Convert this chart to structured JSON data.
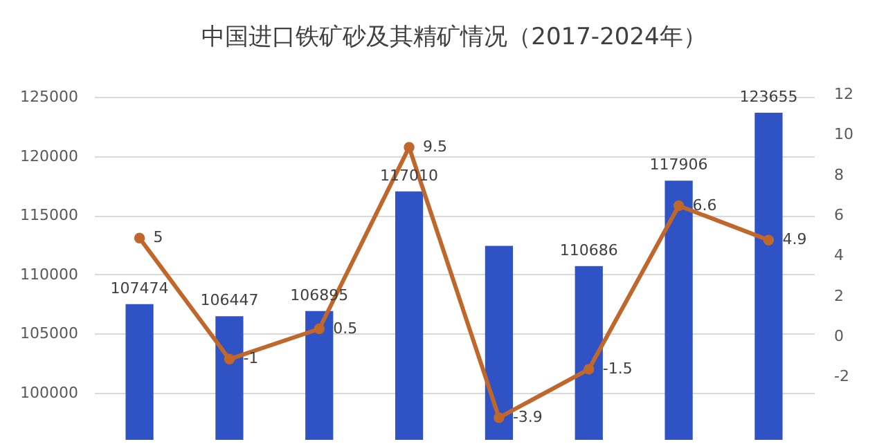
{
  "chart_data": {
    "type": "bar",
    "title": "中国进口铁矿砂及其精矿情况（2017-2024年）",
    "categories": [
      null,
      null,
      null,
      null,
      null,
      null,
      null,
      null
    ],
    "series": [
      {
        "color": "#2f52c4",
        "values": [
          107474,
          106447,
          106895,
          117010,
          112400,
          110686,
          117906,
          123655
        ],
        "value_labels": [
          "107474",
          "106447",
          "106895",
          "117010",
          null,
          "110686",
          "117906",
          "123655"
        ]
      },
      {
        "type": "line",
        "axis": "y2",
        "color": "#c0672b",
        "values": [
          5,
          -1,
          0.5,
          9.5,
          -3.9,
          -1.5,
          6.6,
          4.9
        ],
        "value_labels": [
          "5",
          "-1",
          "0.5",
          "9.5",
          "-3.9",
          "-1.5",
          "6.6",
          "4.9"
        ]
      }
    ],
    "ylim": [
      96000,
      125000
    ],
    "yticks": [
      100000,
      105000,
      110000,
      115000,
      120000,
      125000
    ],
    "y2lim": [
      -5,
      12
    ],
    "y2ticks": [
      -2,
      0,
      2,
      4,
      6,
      8,
      10,
      12
    ],
    "grid": "y",
    "marker": "circle",
    "legend": false
  }
}
